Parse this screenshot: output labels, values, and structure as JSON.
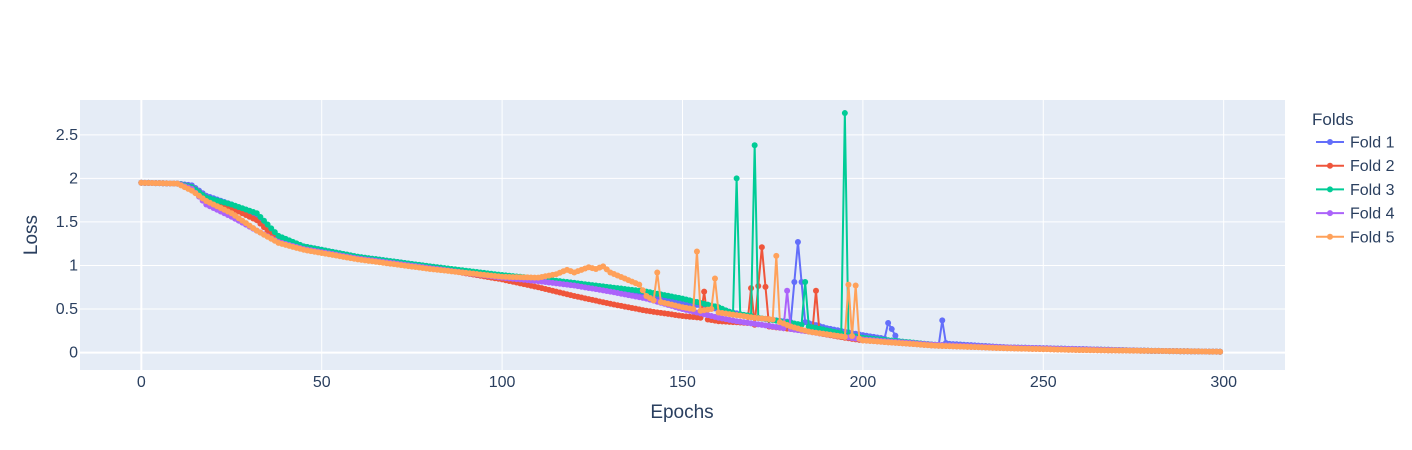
{
  "chart_data": {
    "type": "line",
    "xlabel": "Epochs",
    "ylabel": "Loss",
    "xlim": [
      -17,
      317
    ],
    "ylim": [
      -0.2,
      2.9
    ],
    "x_ticks": [
      0,
      50,
      100,
      150,
      200,
      250,
      300
    ],
    "y_ticks": [
      0,
      0.5,
      1,
      1.5,
      2,
      2.5
    ],
    "y_tick_labels": [
      "0",
      "0.5",
      "1",
      "1.5",
      "2",
      "2.5"
    ],
    "grid": true,
    "legend_title": "Folds",
    "legend_position": "right",
    "plot_background": "#e5ecf6",
    "grid_color": "#ffffff",
    "series": [
      {
        "name": "Fold 1",
        "color": "#636efa",
        "points": [
          [
            0,
            1.95
          ],
          [
            10,
            1.94
          ],
          [
            14,
            1.92
          ],
          [
            18,
            1.8
          ],
          [
            25,
            1.7
          ],
          [
            32,
            1.58
          ],
          [
            38,
            1.32
          ],
          [
            45,
            1.22
          ],
          [
            60,
            1.1
          ],
          [
            80,
            0.99
          ],
          [
            100,
            0.88
          ],
          [
            120,
            0.8
          ],
          [
            140,
            0.66
          ],
          [
            160,
            0.5
          ],
          [
            170,
            0.4
          ],
          [
            180,
            0.35
          ],
          [
            182,
            1.27
          ],
          [
            184,
            0.35
          ],
          [
            190,
            0.28
          ],
          [
            200,
            0.2
          ],
          [
            206,
            0.16
          ],
          [
            207,
            0.34
          ],
          [
            208,
            0.27
          ],
          [
            210,
            0.12
          ],
          [
            221,
            0.08
          ],
          [
            222,
            0.37
          ],
          [
            223,
            0.11
          ],
          [
            224,
            0.1
          ],
          [
            240,
            0.06
          ],
          [
            260,
            0.04
          ],
          [
            280,
            0.02
          ],
          [
            299,
            0.01
          ]
        ]
      },
      {
        "name": "Fold 2",
        "color": "#ef553b",
        "points": [
          [
            0,
            1.95
          ],
          [
            10,
            1.94
          ],
          [
            14,
            1.9
          ],
          [
            18,
            1.78
          ],
          [
            25,
            1.66
          ],
          [
            32,
            1.52
          ],
          [
            38,
            1.28
          ],
          [
            45,
            1.2
          ],
          [
            60,
            1.09
          ],
          [
            80,
            0.98
          ],
          [
            100,
            0.84
          ],
          [
            110,
            0.75
          ],
          [
            120,
            0.65
          ],
          [
            130,
            0.56
          ],
          [
            140,
            0.48
          ],
          [
            150,
            0.42
          ],
          [
            155,
            0.4
          ],
          [
            156,
            0.7
          ],
          [
            157,
            0.38
          ],
          [
            160,
            0.36
          ],
          [
            168,
            0.34
          ],
          [
            169,
            0.74
          ],
          [
            170,
            0.32
          ],
          [
            172,
            1.21
          ],
          [
            174,
            0.3
          ],
          [
            180,
            0.27
          ],
          [
            186,
            0.24
          ],
          [
            187,
            0.71
          ],
          [
            188,
            0.22
          ],
          [
            195,
            0.17
          ],
          [
            200,
            0.14
          ],
          [
            220,
            0.08
          ],
          [
            240,
            0.05
          ],
          [
            260,
            0.03
          ],
          [
            280,
            0.02
          ],
          [
            299,
            0.01
          ]
        ]
      },
      {
        "name": "Fold 3",
        "color": "#00cc96",
        "points": [
          [
            0,
            1.95
          ],
          [
            10,
            1.94
          ],
          [
            14,
            1.9
          ],
          [
            18,
            1.78
          ],
          [
            25,
            1.7
          ],
          [
            32,
            1.6
          ],
          [
            38,
            1.34
          ],
          [
            45,
            1.22
          ],
          [
            60,
            1.1
          ],
          [
            80,
            0.99
          ],
          [
            100,
            0.89
          ],
          [
            110,
            0.85
          ],
          [
            120,
            0.8
          ],
          [
            140,
            0.7
          ],
          [
            150,
            0.62
          ],
          [
            160,
            0.52
          ],
          [
            164,
            0.45
          ],
          [
            165,
            2.0
          ],
          [
            166,
            0.44
          ],
          [
            169,
            0.42
          ],
          [
            170,
            2.38
          ],
          [
            171,
            0.4
          ],
          [
            180,
            0.34
          ],
          [
            183,
            0.32
          ],
          [
            184,
            0.81
          ],
          [
            185,
            0.3
          ],
          [
            194,
            0.22
          ],
          [
            195,
            2.75
          ],
          [
            196,
            0.2
          ],
          [
            200,
            0.17
          ],
          [
            220,
            0.09
          ],
          [
            240,
            0.06
          ],
          [
            260,
            0.04
          ],
          [
            280,
            0.02
          ],
          [
            299,
            0.01
          ]
        ]
      },
      {
        "name": "Fold 4",
        "color": "#ab63fa",
        "points": [
          [
            0,
            1.95
          ],
          [
            10,
            1.94
          ],
          [
            14,
            1.88
          ],
          [
            18,
            1.7
          ],
          [
            25,
            1.56
          ],
          [
            32,
            1.4
          ],
          [
            38,
            1.27
          ],
          [
            45,
            1.19
          ],
          [
            60,
            1.08
          ],
          [
            80,
            0.97
          ],
          [
            100,
            0.86
          ],
          [
            110,
            0.82
          ],
          [
            120,
            0.77
          ],
          [
            130,
            0.7
          ],
          [
            140,
            0.62
          ],
          [
            150,
            0.5
          ],
          [
            160,
            0.4
          ],
          [
            165,
            0.36
          ],
          [
            170,
            0.33
          ],
          [
            175,
            0.3
          ],
          [
            178,
            0.28
          ],
          [
            179,
            0.71
          ],
          [
            180,
            0.27
          ],
          [
            185,
            0.24
          ],
          [
            190,
            0.21
          ],
          [
            195,
            0.18
          ],
          [
            200,
            0.15
          ],
          [
            220,
            0.09
          ],
          [
            240,
            0.06
          ],
          [
            260,
            0.04
          ],
          [
            280,
            0.02
          ],
          [
            299,
            0.01
          ]
        ]
      },
      {
        "name": "Fold 5",
        "color": "#ffa15a",
        "points": [
          [
            0,
            1.95
          ],
          [
            10,
            1.94
          ],
          [
            14,
            1.86
          ],
          [
            18,
            1.74
          ],
          [
            25,
            1.6
          ],
          [
            32,
            1.4
          ],
          [
            38,
            1.26
          ],
          [
            45,
            1.18
          ],
          [
            60,
            1.07
          ],
          [
            80,
            0.96
          ],
          [
            100,
            0.87
          ],
          [
            110,
            0.86
          ],
          [
            115,
            0.9
          ],
          [
            118,
            0.95
          ],
          [
            120,
            0.92
          ],
          [
            124,
            0.98
          ],
          [
            126,
            0.96
          ],
          [
            128,
            0.99
          ],
          [
            130,
            0.92
          ],
          [
            134,
            0.85
          ],
          [
            138,
            0.78
          ],
          [
            140,
            0.65
          ],
          [
            142,
            0.6
          ],
          [
            143,
            0.92
          ],
          [
            144,
            0.58
          ],
          [
            150,
            0.52
          ],
          [
            153,
            0.5
          ],
          [
            154,
            1.16
          ],
          [
            155,
            0.48
          ],
          [
            158,
            0.5
          ],
          [
            159,
            0.85
          ],
          [
            160,
            0.46
          ],
          [
            170,
            0.4
          ],
          [
            175,
            0.38
          ],
          [
            176,
            1.11
          ],
          [
            177,
            0.35
          ],
          [
            180,
            0.3
          ],
          [
            185,
            0.24
          ],
          [
            195,
            0.18
          ],
          [
            196,
            0.78
          ],
          [
            197,
            0.19
          ],
          [
            198,
            0.77
          ],
          [
            199,
            0.16
          ],
          [
            200,
            0.14
          ],
          [
            220,
            0.08
          ],
          [
            240,
            0.05
          ],
          [
            260,
            0.03
          ],
          [
            280,
            0.02
          ],
          [
            299,
            0.01
          ]
        ]
      }
    ]
  }
}
